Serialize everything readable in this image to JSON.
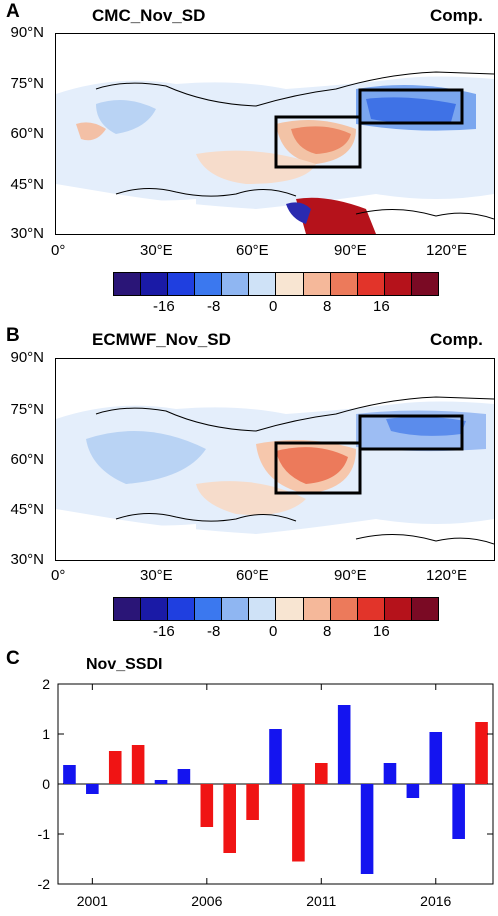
{
  "panels": {
    "a": {
      "label": "A",
      "title": "CMC_Nov_SD",
      "comp": "Comp."
    },
    "b": {
      "label": "B",
      "title": "ECMWF_Nov_SD",
      "comp": "Comp."
    },
    "c": {
      "label": "C",
      "title": "Nov_SSDI"
    }
  },
  "map_axes": {
    "lat_labels": [
      "90°N",
      "75°N",
      "60°N",
      "45°N",
      "30°N"
    ],
    "lon_labels": [
      "0°",
      "30°E",
      "60°E",
      "90°E",
      "120°E"
    ]
  },
  "colorbar": {
    "colors": [
      "#2a1577",
      "#1a1aa6",
      "#1f3fe0",
      "#3b78ef",
      "#8fb6f2",
      "#cfe2f7",
      "#f8e5d2",
      "#f5b89a",
      "#ec7a5b",
      "#e2342a",
      "#b5121b",
      "#7a0a24"
    ],
    "tick_labels": [
      "-16",
      "-8",
      "0",
      "8",
      "16"
    ]
  },
  "chart_data": {
    "type": "bar",
    "title": "Nov_SSDI",
    "x": [
      2000,
      2001,
      2002,
      2003,
      2004,
      2005,
      2006,
      2007,
      2008,
      2009,
      2010,
      2011,
      2012,
      2013,
      2014,
      2015,
      2016,
      2017,
      2018
    ],
    "values": [
      0.38,
      -0.2,
      0.66,
      0.78,
      0.08,
      0.3,
      -0.86,
      -1.38,
      -0.72,
      1.1,
      -1.55,
      0.42,
      1.58,
      -1.8,
      0.42,
      -0.28,
      1.04,
      -1.1,
      1.24
    ],
    "colors": [
      "blue",
      "blue",
      "red",
      "red",
      "blue",
      "blue",
      "red",
      "red",
      "red",
      "blue",
      "red",
      "red",
      "blue",
      "blue",
      "blue",
      "blue",
      "blue",
      "blue",
      "red"
    ],
    "xticks": [
      "2001",
      "2006",
      "2011",
      "2016"
    ],
    "yticks": [
      "2",
      "1",
      "0",
      "-1",
      "-2"
    ],
    "ylim": [
      -2,
      2
    ],
    "bar_colors": {
      "blue": "#1414f0",
      "red": "#f01414"
    }
  }
}
